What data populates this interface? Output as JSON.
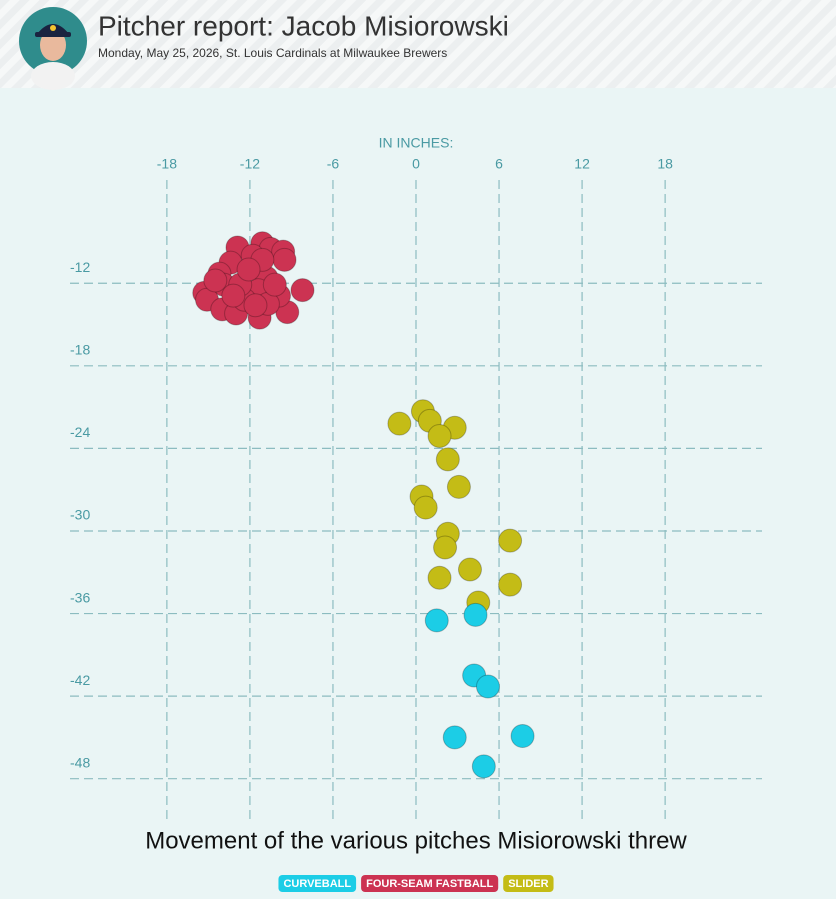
{
  "header": {
    "title": "Pitcher report: Jacob Misiorowski",
    "subtitle": "Monday, May 25, 2026, St. Louis Cardinals at Milwaukee Brewers"
  },
  "chart_data": {
    "type": "scatter",
    "title": "Movement of the various pitches Misiorowski threw",
    "axis_label": "IN INCHES:",
    "xlim": [
      -25,
      25
    ],
    "ylim": [
      -51,
      -4.5
    ],
    "xticks": [
      -18,
      -12,
      -6,
      0,
      6,
      12,
      18
    ],
    "yticks": [
      -12,
      -18,
      -24,
      -30,
      -36,
      -42,
      -48
    ],
    "grid": true,
    "series": [
      {
        "name": "CURVEBALL",
        "color": "#1ccde6",
        "x": [
          1.5,
          4.3,
          4.2,
          5.2,
          2.8,
          7.7,
          4.9
        ],
        "values": [
          -36.5,
          -36.1,
          -40.5,
          -41.3,
          -45.0,
          -44.9,
          -47.1
        ]
      },
      {
        "name": "FOUR-SEAM FASTBALL",
        "color": "#cc3352",
        "x": [
          -12.9,
          -11.1,
          -10.5,
          -9.6,
          -9.5,
          -8.2,
          -13.4,
          -11.8,
          -10.8,
          -14.2,
          -13.9,
          -15.3,
          -15.1,
          -14.0,
          -13.0,
          -11.3,
          -9.3,
          -9.9,
          -11.4,
          -12.4,
          -12.7,
          -10.7,
          -11.1,
          -12.1,
          -13.2,
          -10.2,
          -11.6,
          -14.5
        ],
        "values": [
          -9.4,
          -9.1,
          -9.5,
          -9.7,
          -10.3,
          -12.5,
          -10.5,
          -10.0,
          -11.6,
          -11.3,
          -12.1,
          -12.7,
          -13.2,
          -13.9,
          -14.2,
          -14.5,
          -14.1,
          -12.9,
          -12.5,
          -13.2,
          -12.1,
          -13.5,
          -10.3,
          -11.0,
          -12.9,
          -12.1,
          -13.6,
          -11.8
        ]
      },
      {
        "name": "SLIDER",
        "color": "#c4bc16",
        "x": [
          0.5,
          1.0,
          -1.2,
          2.8,
          1.7,
          2.3,
          3.1,
          0.4,
          0.7,
          2.3,
          2.1,
          6.8,
          3.9,
          1.7,
          6.8,
          4.5
        ],
        "values": [
          -21.3,
          -22.0,
          -22.2,
          -22.5,
          -23.1,
          -24.8,
          -26.8,
          -27.5,
          -28.3,
          -30.2,
          -31.2,
          -30.7,
          -32.8,
          -33.4,
          -33.9,
          -35.2
        ]
      }
    ]
  }
}
